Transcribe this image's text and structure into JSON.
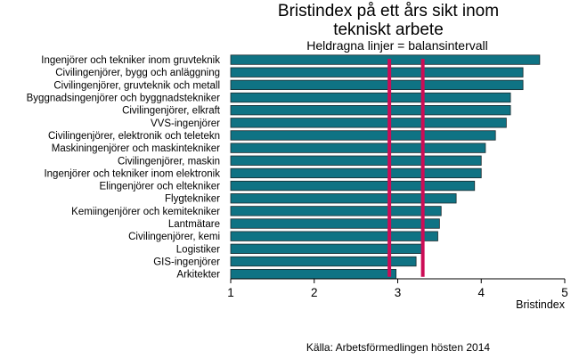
{
  "chart_data": {
    "type": "bar",
    "orientation": "horizontal",
    "title": "Bristindex på ett års sikt inom tekniskt arbete",
    "title_lines": [
      "Bristindex på ett års sikt inom",
      "tekniskt arbete"
    ],
    "subtitle": "Heldragna linjer = balansintervall",
    "xlabel": "Bristindex",
    "source": "Källa: Arbetsförmedlingen hösten 2014",
    "xlim": [
      1,
      5
    ],
    "xticks": [
      "1",
      "2",
      "3",
      "4",
      "5"
    ],
    "bar_color": "#0f7384",
    "reference_line_color": "#cc0d56",
    "reference_lines": [
      2.9,
      3.3
    ],
    "grid": false,
    "categories": [
      "Ingenjörer och tekniker inom gruvteknik",
      "Civilingenjörer, bygg och anläggning",
      "Civilingenjörer, gruvteknik och metall",
      "Byggnadsingenjörer och byggnadstekniker",
      "Civilingenjörer, elkraft",
      "VVS-ingenjörer",
      "Civilingenjörer, elektronik och teletekn",
      "Maskiningenjörer och maskintekniker",
      "Civilingenjörer, maskin",
      "Ingenjörer och tekniker inom elektronik",
      "Elingenjörer och eltekniker",
      "Flygtekniker",
      "Kemiingenjörer och kemitekniker",
      "Lantmätare",
      "Civilingenjörer, kemi",
      "Logistiker",
      "GIS-ingenjörer",
      "Arkitekter"
    ],
    "values": [
      4.7,
      4.5,
      4.5,
      4.35,
      4.35,
      4.3,
      4.17,
      4.05,
      4.0,
      4.0,
      3.92,
      3.7,
      3.52,
      3.5,
      3.48,
      3.3,
      3.22,
      2.98
    ]
  }
}
